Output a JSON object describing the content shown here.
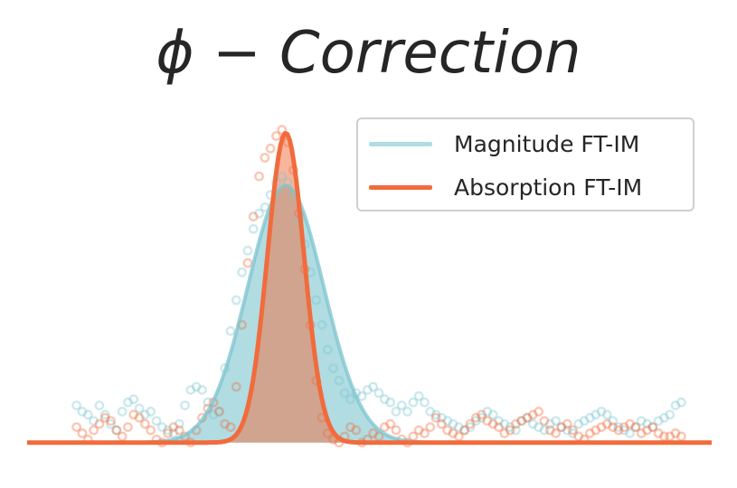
{
  "chart_data": {
    "type": "line",
    "title": "ϕ − Correction",
    "xlabel": "",
    "ylabel": "",
    "grid": false,
    "legend_position": "top-right",
    "axes_visible": false,
    "series": [
      {
        "name": "Magnitude FT-IM",
        "color": "#7cc4cf",
        "fill": true,
        "model": {
          "kind": "gaussian",
          "center": 0,
          "sigma": 1.0,
          "amplitude": 0.83,
          "baseline": 0.0
        },
        "x": [
          -5.5,
          -5.35,
          -5.2,
          -5.05,
          -4.9,
          -4.75,
          -4.6,
          -4.45,
          -4.3,
          -4.15,
          -4.0,
          -3.85,
          -3.7,
          -3.55,
          -3.4,
          -3.25,
          -3.1,
          -2.95,
          -2.8,
          -2.65,
          -2.5,
          -2.35,
          -2.2,
          -2.05,
          -1.9,
          -1.75,
          -1.6,
          -1.45,
          -1.3,
          -1.15,
          -1.0,
          -0.85,
          -0.7,
          -0.55,
          -0.4,
          -0.25,
          -0.1,
          0.05,
          0.2,
          0.35,
          0.5,
          0.65,
          0.8,
          0.95,
          1.1,
          1.25,
          1.4,
          1.55,
          1.7,
          1.85,
          2.0,
          2.15,
          2.3,
          2.45,
          2.6,
          2.75,
          2.9,
          3.05,
          3.2,
          3.35,
          3.5,
          3.65,
          3.8,
          3.95,
          4.1,
          4.25,
          4.4,
          4.55,
          4.7,
          4.85,
          5.0,
          5.15,
          5.3,
          5.45,
          5.6,
          5.75,
          5.9,
          6.05,
          6.2,
          6.35,
          6.5,
          6.65,
          6.8,
          6.95,
          7.1,
          7.25,
          7.4,
          7.55,
          7.7,
          7.85,
          8.0,
          8.15,
          8.3,
          8.45,
          8.6,
          8.75,
          8.9,
          9.05,
          9.2,
          9.35,
          9.5,
          9.65,
          9.8,
          9.95,
          10.1,
          10.25,
          10.4
        ],
        "points": [
          0.12,
          0.1,
          0.09,
          0.07,
          0.12,
          0.09,
          0.06,
          0.04,
          0.1,
          0.13,
          0.14,
          0.11,
          0.09,
          0.1,
          0.07,
          0.05,
          0.04,
          0.03,
          0.06,
          0.12,
          0.17,
          0.18,
          0.17,
          0.13,
          0.09,
          0.1,
          0.24,
          0.36,
          0.46,
          0.55,
          0.62,
          0.69,
          0.74,
          0.76,
          0.8,
          0.84,
          0.86,
          0.84,
          0.8,
          0.72,
          0.64,
          0.55,
          0.46,
          0.38,
          0.3,
          0.24,
          0.2,
          0.16,
          0.14,
          0.16,
          0.15,
          0.17,
          0.18,
          0.16,
          0.14,
          0.13,
          0.1,
          0.12,
          0.1,
          0.13,
          0.15,
          0.13,
          0.1,
          0.09,
          0.08,
          0.07,
          0.06,
          0.05,
          0.04,
          0.05,
          0.07,
          0.08,
          0.1,
          0.09,
          0.07,
          0.06,
          0.05,
          0.04,
          0.07,
          0.08,
          0.06,
          0.05,
          0.04,
          0.06,
          0.07,
          0.05,
          0.04,
          0.03,
          0.06,
          0.07,
          0.08,
          0.09,
          0.1,
          0.09,
          0.07,
          0.05,
          0.04,
          0.03,
          0.05,
          0.07,
          0.06,
          0.05,
          0.07,
          0.08,
          0.09,
          0.12,
          0.13
        ]
      },
      {
        "name": "Absorption FT-IM",
        "color": "#f26b3c",
        "fill": true,
        "model": {
          "kind": "gaussian",
          "center": 0,
          "sigma": 0.48,
          "amplitude": 1.0,
          "baseline": 0.0
        },
        "x": [
          -5.5,
          -5.35,
          -5.2,
          -5.05,
          -4.9,
          -4.75,
          -4.6,
          -4.45,
          -4.3,
          -4.15,
          -4.0,
          -3.85,
          -3.7,
          -3.55,
          -3.4,
          -3.25,
          -3.1,
          -2.95,
          -2.8,
          -2.65,
          -2.5,
          -2.35,
          -2.2,
          -2.05,
          -1.9,
          -1.75,
          -1.6,
          -1.45,
          -1.3,
          -1.15,
          -1.0,
          -0.85,
          -0.7,
          -0.55,
          -0.4,
          -0.25,
          -0.1,
          0.05,
          0.2,
          0.35,
          0.5,
          0.65,
          0.8,
          0.95,
          1.1,
          1.25,
          1.4,
          1.55,
          1.7,
          1.85,
          2.0,
          2.15,
          2.3,
          2.45,
          2.6,
          2.75,
          2.9,
          3.05,
          3.2,
          3.35,
          3.5,
          3.65,
          3.8,
          3.95,
          4.1,
          4.25,
          4.4,
          4.55,
          4.7,
          4.85,
          5.0,
          5.15,
          5.3,
          5.45,
          5.6,
          5.75,
          5.9,
          6.05,
          6.2,
          6.35,
          6.5,
          6.65,
          6.8,
          6.95,
          7.1,
          7.25,
          7.4,
          7.55,
          7.7,
          7.85,
          8.0,
          8.15,
          8.3,
          8.45,
          8.6,
          8.75,
          8.9,
          9.05,
          9.2,
          9.35,
          9.5,
          9.65,
          9.8,
          9.95,
          10.1,
          10.25,
          10.4
        ],
        "points": [
          0.05,
          0.03,
          0.01,
          0.04,
          0.06,
          0.08,
          0.07,
          0.04,
          0.02,
          0.05,
          0.09,
          0.08,
          0.06,
          0.04,
          0.01,
          0.0,
          0.03,
          0.05,
          0.04,
          0.02,
          0.0,
          0.04,
          0.08,
          0.11,
          0.13,
          0.1,
          0.06,
          0.05,
          0.18,
          0.38,
          0.58,
          0.73,
          0.86,
          0.92,
          0.95,
          0.99,
          1.01,
          0.97,
          0.88,
          0.74,
          0.56,
          0.38,
          0.2,
          0.08,
          0.03,
          0.01,
          0.0,
          0.02,
          0.05,
          0.04,
          0.0,
          0.01,
          0.03,
          0.02,
          0.05,
          0.06,
          0.04,
          0.01,
          0.0,
          0.02,
          0.04,
          0.03,
          0.05,
          0.08,
          0.06,
          0.04,
          0.03,
          0.02,
          0.04,
          0.06,
          0.08,
          0.09,
          0.07,
          0.06,
          0.05,
          0.03,
          0.04,
          0.06,
          0.07,
          0.08,
          0.09,
          0.1,
          0.07,
          0.04,
          0.03,
          0.05,
          0.06,
          0.04,
          0.02,
          0.01,
          0.03,
          0.04,
          0.05,
          0.06,
          0.05,
          0.04,
          0.05,
          0.06,
          0.05,
          0.03,
          0.04,
          0.05,
          0.03,
          0.02,
          0.02,
          0.03,
          0.02
        ]
      }
    ],
    "xlim": [
      -6.8,
      11.2
    ],
    "ylim": [
      -0.03,
      1.05
    ]
  }
}
